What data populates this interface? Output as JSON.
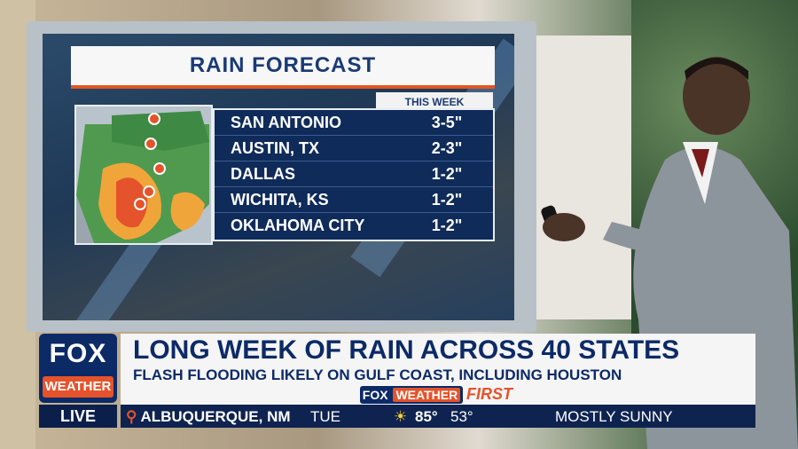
{
  "graphic": {
    "title": "RAIN FORECAST",
    "column_header": "THIS WEEK",
    "rows": [
      {
        "city": "SAN ANTONIO",
        "amount": "3-5\""
      },
      {
        "city": "AUSTIN, TX",
        "amount": "2-3\""
      },
      {
        "city": "DALLAS",
        "amount": "1-2\""
      },
      {
        "city": "WICHITA, KS",
        "amount": "1-2\""
      },
      {
        "city": "OKLAHOMA CITY",
        "amount": "1-2\""
      }
    ]
  },
  "chyron": {
    "logo_top": "FOX",
    "logo_bottom": "WEATHER",
    "live": "LIVE",
    "headline": "LONG WEEK OF RAIN ACROSS 40 STATES",
    "subheadline": "FLASH FLOODING LIKELY ON GULF COAST, INCLUDING HOUSTON",
    "brand_fox": "FOX",
    "brand_weather": "WEATHER",
    "brand_first": "FIRST"
  },
  "weather_bar": {
    "location": "ALBUQUERQUE, NM",
    "day": "TUE",
    "high": "85°",
    "low": "53°",
    "condition": "MOSTLY SUNNY"
  },
  "colors": {
    "navy": "#0c2a66",
    "orange": "#e4532b"
  }
}
